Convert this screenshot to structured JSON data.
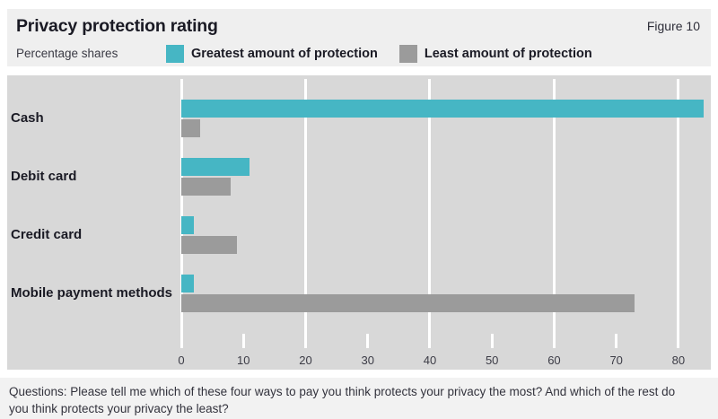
{
  "header": {
    "title": "Privacy protection rating",
    "figure_label": "Figure 10",
    "subtitle": "Percentage shares"
  },
  "legend": [
    {
      "label": "Greatest amount of protection",
      "color": "#46b6c4"
    },
    {
      "label": "Least amount of protection",
      "color": "#9b9b9b"
    }
  ],
  "chart_data": {
    "type": "bar",
    "orientation": "horizontal",
    "title": "Privacy protection rating",
    "subtitle": "Percentage shares",
    "categories": [
      "Cash",
      "Debit card",
      "Credit card",
      "Mobile payment methods"
    ],
    "series": [
      {
        "name": "Greatest amount of protection",
        "color": "#46b6c4",
        "values": [
          84,
          11,
          2,
          2
        ]
      },
      {
        "name": "Least amount of protection",
        "color": "#9b9b9b",
        "values": [
          3,
          8,
          9,
          73
        ]
      }
    ],
    "xlabel": "",
    "ylabel": "",
    "xlim": [
      0,
      85.5
    ],
    "xticks": [
      0,
      10,
      20,
      30,
      40,
      50,
      60,
      70,
      80
    ],
    "gridlines": [
      0,
      20,
      40,
      60,
      80
    ],
    "grid_color": "#ffffff",
    "plot_bg": "#d8d8d8",
    "legend_position": "top"
  },
  "footer": {
    "question": "Questions: Please tell me which of these four ways to pay you think protects your privacy the most? And which of the rest do you think protects your privacy the least?"
  },
  "colors": {
    "header_bg": "#efefef",
    "chart_bg": "#d8d8d8",
    "footer_bg": "#f2f2f2",
    "text_dark": "#1a1a24"
  }
}
